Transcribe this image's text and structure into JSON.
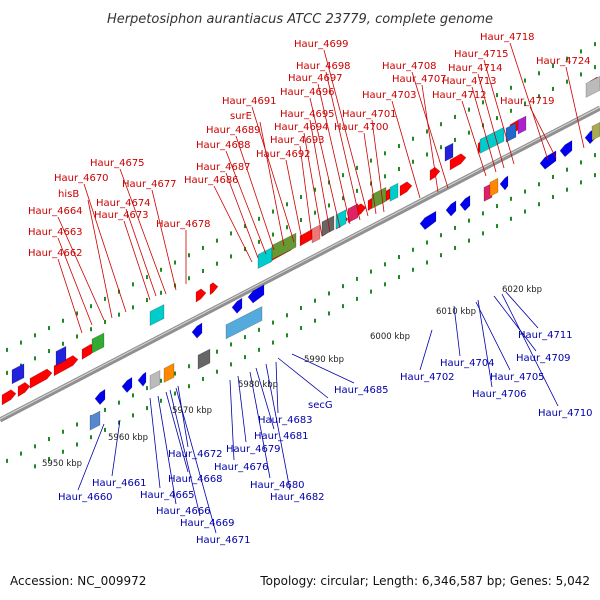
{
  "title": "Herpetosiphon aurantiacus ATCC 23779, complete genome",
  "footer": {
    "accession": "Accession: NC_009972",
    "stats": "Topology: circular; Length: 6,346,587 bp; Genes: 5,042"
  },
  "colors": {
    "forward_label": "#cc0000",
    "reverse_label": "#0000aa",
    "forward_arrow": "#ff0000",
    "reverse_arrow": "#0000ee",
    "backbone": "#909090",
    "tick": "#228822"
  },
  "ruler": [
    {
      "label": "5950 kbp"
    },
    {
      "label": "5960 kbp"
    },
    {
      "label": "5970 kbp"
    },
    {
      "label": "5980 kbp"
    },
    {
      "label": "5990 kbp"
    },
    {
      "label": "6000 kbp"
    },
    {
      "label": "6010 kbp"
    },
    {
      "label": "6020 kbp"
    }
  ],
  "forward_genes": [
    "Haur_4662",
    "Haur_4663",
    "Haur_4664",
    "hisB",
    "Haur_4670",
    "Haur_4673",
    "Haur_4674",
    "Haur_4675",
    "Haur_4677",
    "Haur_4678",
    "Haur_4686",
    "Haur_4687",
    "Haur_4688",
    "Haur_4689",
    "surE",
    "Haur_4691",
    "Haur_4692",
    "Haur_4693",
    "Haur_4694",
    "Haur_4695",
    "Haur_4696",
    "Haur_4697",
    "Haur_4698",
    "Haur_4699",
    "Haur_4700",
    "Haur_4701",
    "Haur_4703",
    "Haur_4707",
    "Haur_4708",
    "Haur_4712",
    "Haur_4713",
    "Haur_4714",
    "Haur_4715",
    "Haur_4718",
    "Haur_4719",
    "Haur_4724"
  ],
  "reverse_genes": [
    "Haur_4660",
    "Haur_4661",
    "Haur_4665",
    "Haur_4666",
    "Haur_4668",
    "Haur_4669",
    "Haur_4671",
    "Haur_4672",
    "Haur_4676",
    "Haur_4679",
    "Haur_4680",
    "Haur_4681",
    "Haur_4682",
    "Haur_4683",
    "secG",
    "Haur_4685",
    "Haur_4702",
    "Haur_4704",
    "Haur_4705",
    "Haur_4706",
    "Haur_4709",
    "Haur_4710",
    "Haur_4711"
  ]
}
